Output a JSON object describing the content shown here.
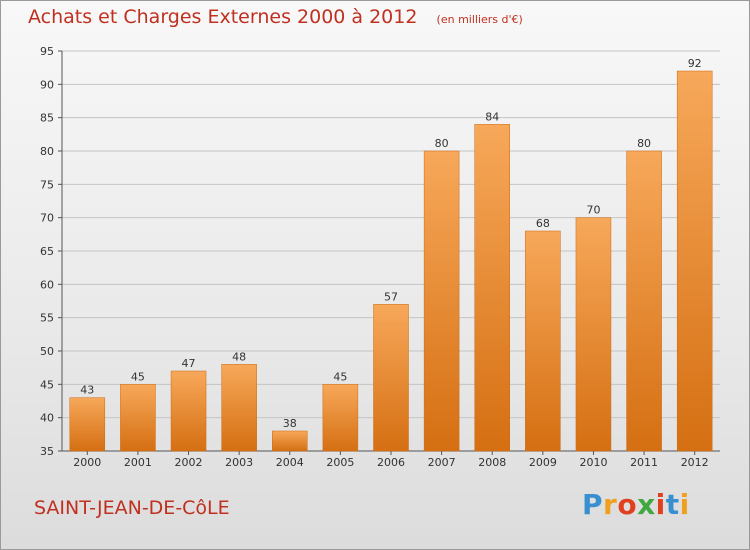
{
  "chart_data": {
    "type": "bar",
    "title": "Achats et Charges Externes 2000 à 2012",
    "unit_note": "(en milliers d'€)",
    "categories": [
      "2000",
      "2001",
      "2002",
      "2003",
      "2004",
      "2005",
      "2006",
      "2007",
      "2008",
      "2009",
      "2010",
      "2011",
      "2012"
    ],
    "values": [
      43,
      45,
      47,
      48,
      38,
      45,
      57,
      80,
      84,
      68,
      70,
      80,
      92
    ],
    "ylim": [
      35,
      95
    ],
    "yticks": [
      35,
      40,
      45,
      50,
      55,
      60,
      65,
      70,
      75,
      80,
      85,
      90,
      95
    ],
    "grid": true,
    "bar_color": "#f0902e",
    "bar_color_top": "#f7a85a",
    "bar_color_bottom": "#d56f12"
  },
  "commune": "SAINT-JEAN-DE-CôLE",
  "logo": {
    "letters": [
      "P",
      "r",
      "o",
      "x",
      "i",
      "t",
      "i"
    ],
    "colors": [
      "#3a8fd0",
      "#f0a020",
      "#e04020",
      "#40a840",
      "#e04020",
      "#3a8fd0",
      "#f0a020"
    ]
  }
}
